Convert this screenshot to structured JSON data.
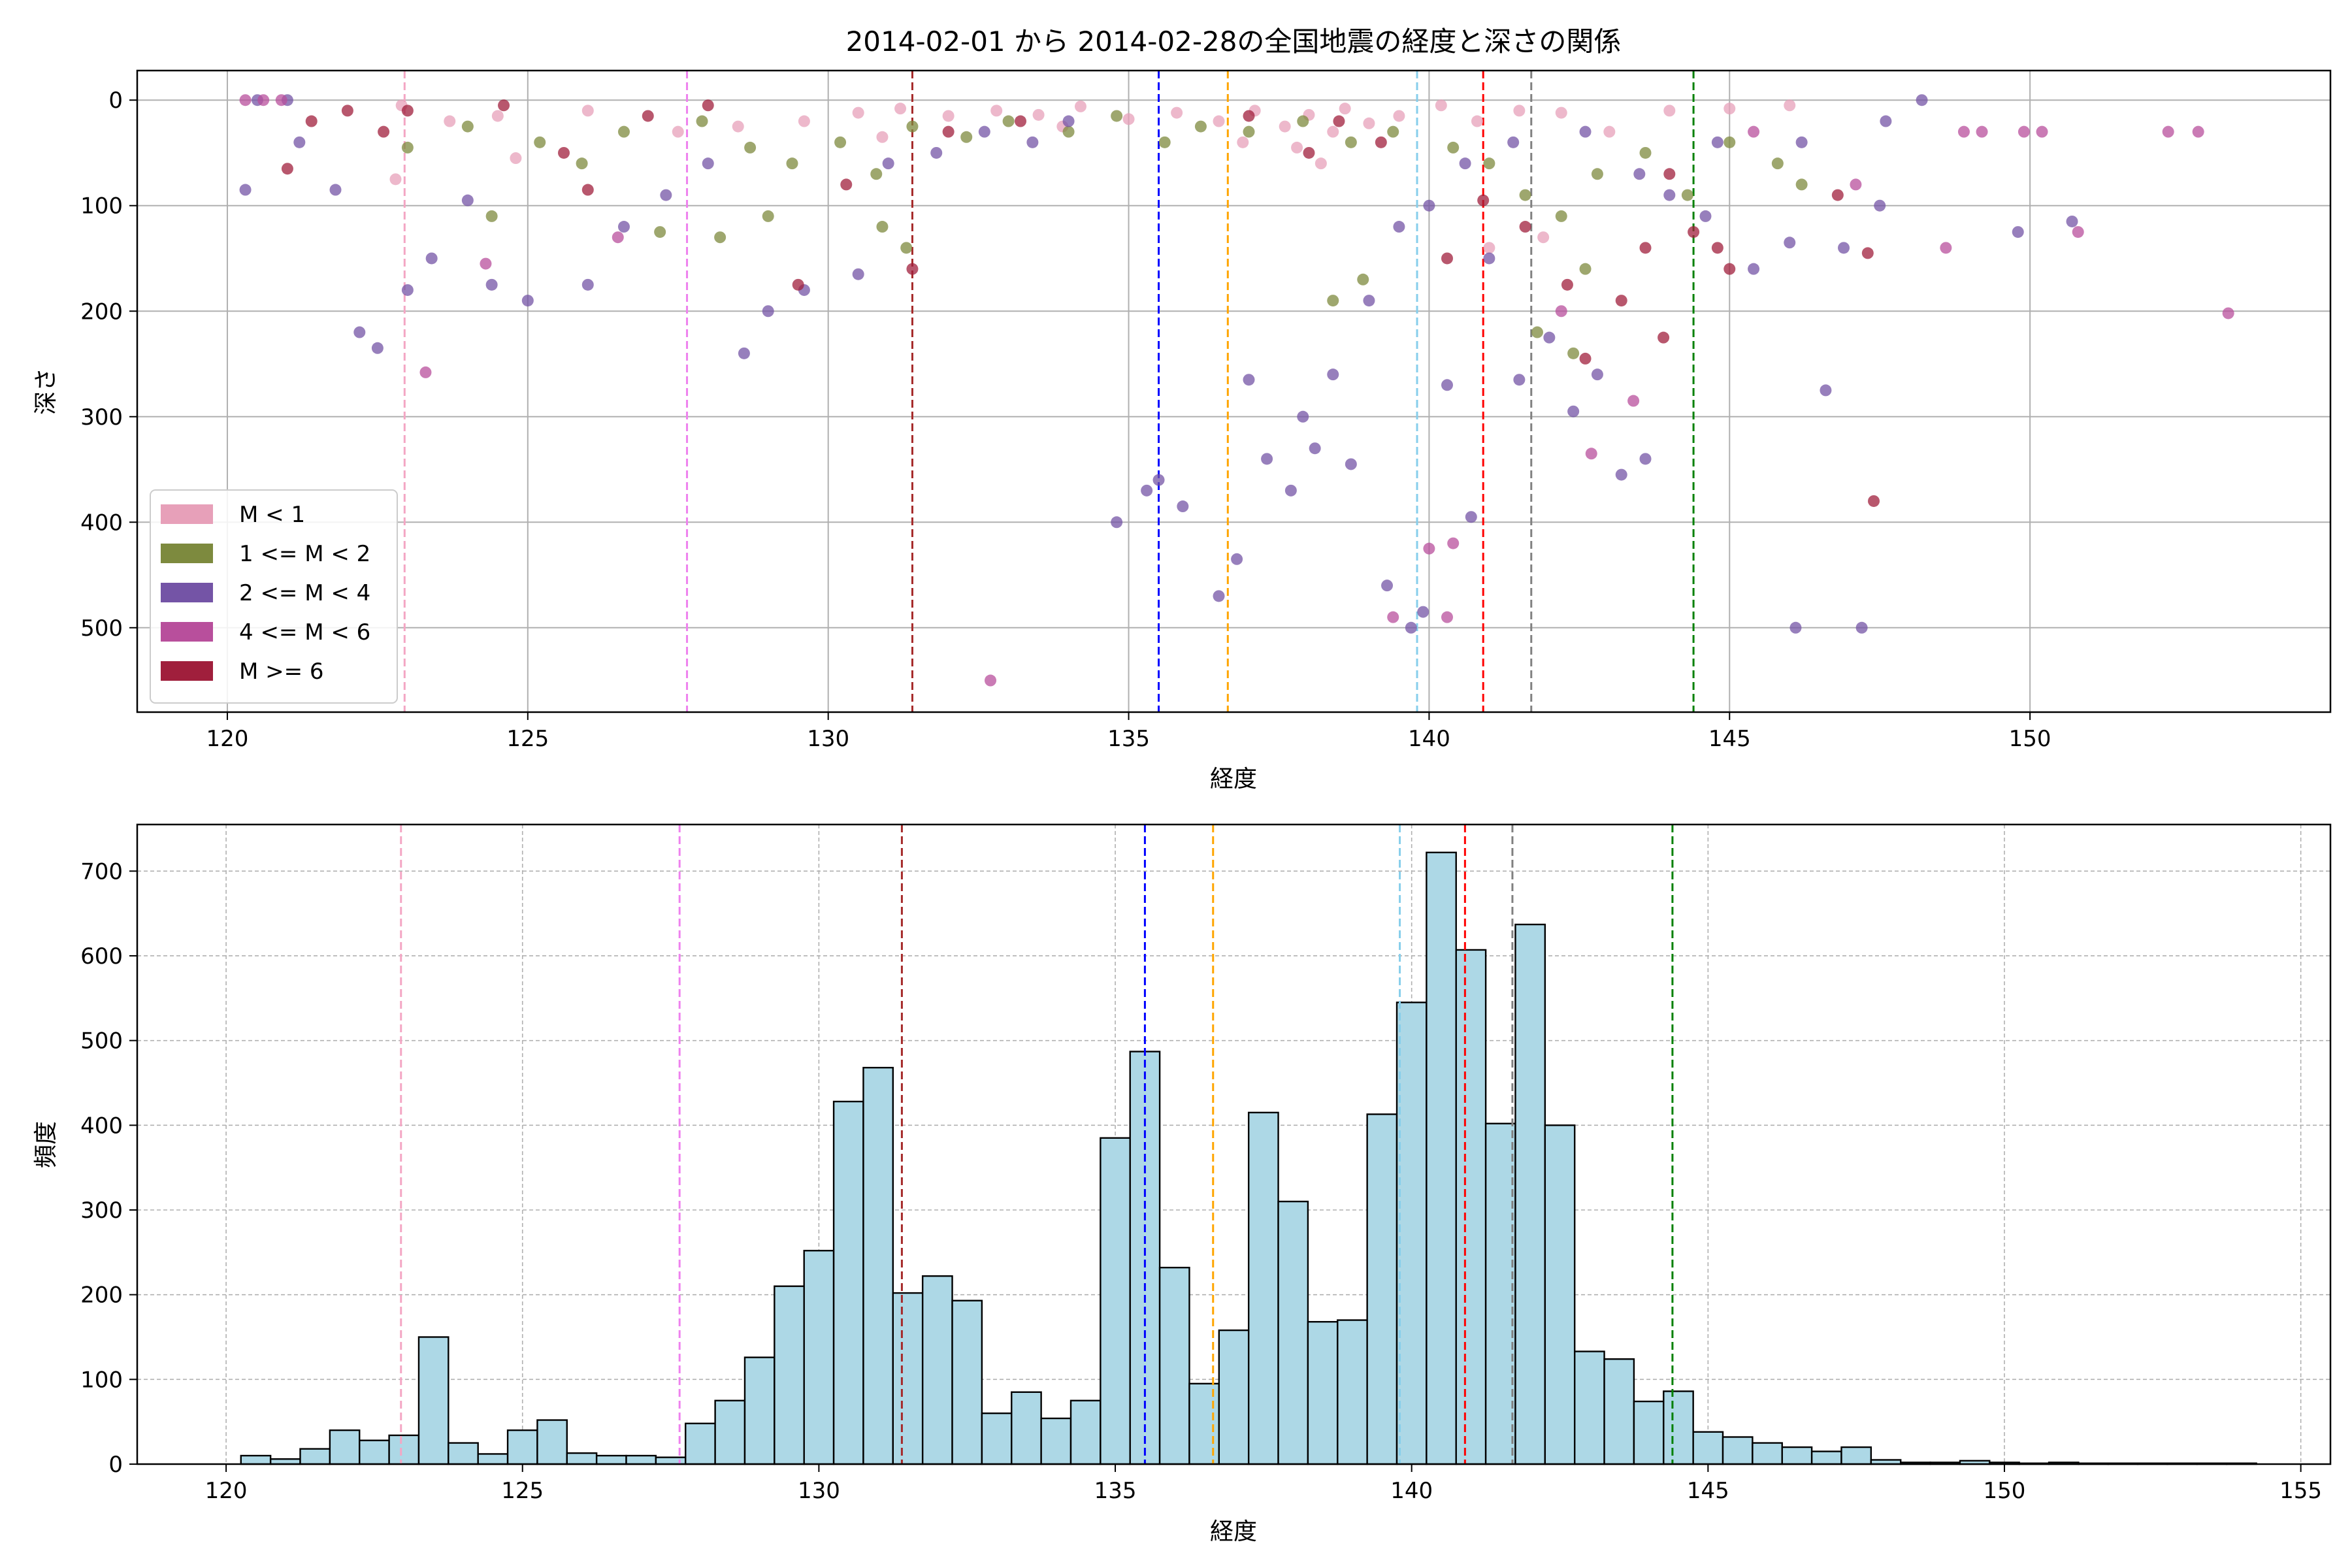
{
  "chart_data": [
    {
      "type": "scatter",
      "title": "2014-02-01 から 2014-02-28の全国地震の経度と深さの関係",
      "xlabel": "経度",
      "ylabel": "深さ",
      "xlim": [
        118.5,
        155
      ],
      "ylim": [
        580,
        -28
      ],
      "y_inverted": true,
      "xticks": [
        120,
        125,
        130,
        135,
        140,
        145,
        150
      ],
      "yticks": [
        0,
        100,
        200,
        300,
        400,
        500
      ],
      "grid": true,
      "legend": "lower-left",
      "series": [
        {
          "name": "M < 1",
          "color": "#e7a0b9",
          "points": [
            [
              130.5,
              12
            ],
            [
              131.2,
              8
            ],
            [
              132.0,
              15
            ],
            [
              132.8,
              10
            ],
            [
              133.5,
              14
            ],
            [
              134.2,
              6
            ],
            [
              135.0,
              18
            ],
            [
              135.8,
              12
            ],
            [
              136.5,
              20
            ],
            [
              137.1,
              10
            ],
            [
              137.6,
              25
            ],
            [
              138.0,
              14
            ],
            [
              138.6,
              8
            ],
            [
              139.0,
              22
            ],
            [
              139.5,
              15
            ],
            [
              140.2,
              5
            ],
            [
              141.5,
              10
            ],
            [
              142.2,
              12
            ],
            [
              143.0,
              30
            ],
            [
              144.0,
              10
            ],
            [
              145.0,
              8
            ],
            [
              146.0,
              5
            ],
            [
              129.6,
              20
            ],
            [
              130.9,
              35
            ],
            [
              133.9,
              25
            ],
            [
              136.9,
              40
            ],
            [
              137.8,
              45
            ],
            [
              138.4,
              30
            ],
            [
              122.9,
              5
            ],
            [
              123.7,
              20
            ],
            [
              124.5,
              15
            ],
            [
              126.0,
              10
            ],
            [
              127.5,
              30
            ],
            [
              128.5,
              25
            ],
            [
              122.8,
              75
            ],
            [
              124.8,
              55
            ],
            [
              141.0,
              140
            ],
            [
              141.9,
              130
            ],
            [
              138.2,
              60
            ],
            [
              140.8,
              20
            ]
          ]
        },
        {
          "name": "1 <= M < 2",
          "color": "#7d8a3e",
          "points": [
            [
              123.0,
              45
            ],
            [
              124.0,
              25
            ],
            [
              125.2,
              40
            ],
            [
              126.6,
              30
            ],
            [
              127.9,
              20
            ],
            [
              128.7,
              45
            ],
            [
              129.4,
              60
            ],
            [
              130.2,
              40
            ],
            [
              130.8,
              70
            ],
            [
              131.4,
              25
            ],
            [
              132.3,
              35
            ],
            [
              133.0,
              20
            ],
            [
              134.0,
              30
            ],
            [
              134.8,
              15
            ],
            [
              135.6,
              40
            ],
            [
              136.2,
              25
            ],
            [
              137.0,
              30
            ],
            [
              137.9,
              20
            ],
            [
              138.7,
              40
            ],
            [
              139.4,
              30
            ],
            [
              140.4,
              45
            ],
            [
              141.0,
              60
            ],
            [
              141.6,
              90
            ],
            [
              142.2,
              110
            ],
            [
              142.8,
              70
            ],
            [
              143.6,
              50
            ],
            [
              144.3,
              90
            ],
            [
              145.0,
              40
            ],
            [
              146.2,
              80
            ],
            [
              130.9,
              120
            ],
            [
              131.3,
              140
            ],
            [
              129.0,
              110
            ],
            [
              128.2,
              130
            ],
            [
              138.9,
              170
            ],
            [
              138.4,
              190
            ],
            [
              141.8,
              220
            ],
            [
              142.4,
              240
            ],
            [
              142.6,
              160
            ],
            [
              125.9,
              60
            ],
            [
              124.4,
              110
            ],
            [
              127.2,
              125
            ],
            [
              145.8,
              60
            ]
          ]
        },
        {
          "name": "2 <= M < 4",
          "color": "#7454a6",
          "points": [
            [
              121.2,
              40
            ],
            [
              121.8,
              85
            ],
            [
              122.2,
              220
            ],
            [
              122.5,
              235
            ],
            [
              123.0,
              180
            ],
            [
              123.4,
              150
            ],
            [
              124.0,
              95
            ],
            [
              124.4,
              175
            ],
            [
              125.0,
              190
            ],
            [
              126.0,
              175
            ],
            [
              126.6,
              120
            ],
            [
              127.3,
              90
            ],
            [
              128.0,
              60
            ],
            [
              128.6,
              240
            ],
            [
              129.0,
              200
            ],
            [
              129.6,
              180
            ],
            [
              130.5,
              165
            ],
            [
              131.0,
              60
            ],
            [
              131.8,
              50
            ],
            [
              132.6,
              30
            ],
            [
              133.4,
              40
            ],
            [
              134.0,
              20
            ],
            [
              134.8,
              400
            ],
            [
              135.3,
              370
            ],
            [
              135.5,
              360
            ],
            [
              135.9,
              385
            ],
            [
              136.5,
              470
            ],
            [
              136.8,
              435
            ],
            [
              137.0,
              265
            ],
            [
              137.3,
              340
            ],
            [
              137.7,
              370
            ],
            [
              137.9,
              300
            ],
            [
              138.1,
              330
            ],
            [
              138.4,
              260
            ],
            [
              138.7,
              345
            ],
            [
              139.0,
              190
            ],
            [
              139.3,
              460
            ],
            [
              139.7,
              500
            ],
            [
              139.9,
              485
            ],
            [
              140.3,
              270
            ],
            [
              140.7,
              395
            ],
            [
              141.0,
              150
            ],
            [
              141.5,
              265
            ],
            [
              142.0,
              225
            ],
            [
              142.4,
              295
            ],
            [
              142.8,
              260
            ],
            [
              143.2,
              355
            ],
            [
              143.6,
              340
            ],
            [
              144.0,
              90
            ],
            [
              144.6,
              110
            ],
            [
              145.4,
              160
            ],
            [
              146.0,
              135
            ],
            [
              146.6,
              275
            ],
            [
              146.9,
              140
            ],
            [
              147.2,
              500
            ],
            [
              147.5,
              100
            ],
            [
              146.1,
              500
            ],
            [
              149.8,
              125
            ],
            [
              150.7,
              115
            ],
            [
              146.2,
              40
            ],
            [
              147.6,
              20
            ],
            [
              148.2,
              0
            ],
            [
              139.5,
              120
            ],
            [
              140.0,
              100
            ],
            [
              140.6,
              60
            ],
            [
              141.4,
              40
            ],
            [
              142.6,
              30
            ],
            [
              143.5,
              70
            ],
            [
              144.8,
              40
            ],
            [
              120.3,
              85
            ],
            [
              120.5,
              0
            ],
            [
              121.0,
              0
            ]
          ]
        },
        {
          "name": "4 <= M < 6",
          "color": "#b84f9c",
          "points": [
            [
              120.3,
              0
            ],
            [
              120.6,
              0
            ],
            [
              120.9,
              0
            ],
            [
              123.3,
              258
            ],
            [
              124.3,
              155
            ],
            [
              126.5,
              130
            ],
            [
              132.7,
              550
            ],
            [
              139.4,
              490
            ],
            [
              140.0,
              425
            ],
            [
              140.3,
              490
            ],
            [
              140.4,
              420
            ],
            [
              142.2,
              200
            ],
            [
              142.7,
              335
            ],
            [
              143.4,
              285
            ],
            [
              148.6,
              140
            ],
            [
              148.9,
              30
            ],
            [
              149.2,
              30
            ],
            [
              149.9,
              30
            ],
            [
              150.2,
              30
            ],
            [
              150.8,
              125
            ],
            [
              152.3,
              30
            ],
            [
              152.8,
              30
            ],
            [
              153.3,
              202
            ],
            [
              147.1,
              80
            ],
            [
              145.4,
              30
            ]
          ]
        },
        {
          "name": "M >= 6",
          "color": "#a01f3c",
          "points": [
            [
              121.0,
              65
            ],
            [
              121.4,
              20
            ],
            [
              122.0,
              10
            ],
            [
              122.6,
              30
            ],
            [
              123.0,
              10
            ],
            [
              124.6,
              5
            ],
            [
              125.6,
              50
            ],
            [
              126.0,
              85
            ],
            [
              127.0,
              15
            ],
            [
              128.0,
              5
            ],
            [
              129.5,
              175
            ],
            [
              130.3,
              80
            ],
            [
              131.4,
              160
            ],
            [
              132.0,
              30
            ],
            [
              133.2,
              20
            ],
            [
              138.0,
              50
            ],
            [
              139.2,
              40
            ],
            [
              140.3,
              150
            ],
            [
              140.9,
              95
            ],
            [
              141.6,
              120
            ],
            [
              142.3,
              175
            ],
            [
              142.6,
              245
            ],
            [
              143.2,
              190
            ],
            [
              143.6,
              140
            ],
            [
              144.0,
              70
            ],
            [
              144.4,
              125
            ],
            [
              144.8,
              140
            ],
            [
              145.0,
              160
            ],
            [
              146.8,
              90
            ],
            [
              147.3,
              145
            ],
            [
              147.4,
              380
            ],
            [
              143.9,
              225
            ],
            [
              138.5,
              20
            ],
            [
              137.0,
              15
            ]
          ]
        }
      ],
      "vlines": [
        {
          "x": 122.95,
          "color": "#f4a6c4"
        },
        {
          "x": 127.65,
          "color": "#ee82ee"
        },
        {
          "x": 131.4,
          "color": "#a52a2a"
        },
        {
          "x": 135.5,
          "color": "#0000ff"
        },
        {
          "x": 136.65,
          "color": "#ffa500"
        },
        {
          "x": 139.8,
          "color": "#87ceeb"
        },
        {
          "x": 140.9,
          "color": "#ff0000"
        },
        {
          "x": 141.7,
          "color": "#808080"
        },
        {
          "x": 144.4,
          "color": "#008000"
        }
      ]
    },
    {
      "type": "bar",
      "subtype": "histogram",
      "xlabel": "経度",
      "ylabel": "頻度",
      "xlim": [
        118.5,
        155.5
      ],
      "ylim": [
        0,
        755
      ],
      "xticks": [
        120,
        125,
        130,
        135,
        140,
        145,
        150,
        155
      ],
      "yticks": [
        0,
        100,
        200,
        300,
        400,
        500,
        600,
        700
      ],
      "grid": true,
      "bar_color": "#add8e6",
      "edge_color": "#000000",
      "bin_start": 120.25,
      "bin_width": 0.5,
      "values": [
        10,
        6,
        18,
        40,
        28,
        34,
        150,
        25,
        12,
        40,
        52,
        13,
        10,
        10,
        8,
        48,
        75,
        126,
        210,
        252,
        428,
        468,
        202,
        222,
        193,
        60,
        85,
        54,
        75,
        385,
        487,
        232,
        95,
        158,
        415,
        310,
        168,
        170,
        413,
        545,
        722,
        607,
        402,
        637,
        400,
        133,
        124,
        74,
        86,
        38,
        32,
        25,
        20,
        15,
        20,
        5,
        2,
        2,
        4,
        2,
        1,
        2,
        1,
        1,
        1,
        1,
        1,
        1
      ]
    }
  ]
}
